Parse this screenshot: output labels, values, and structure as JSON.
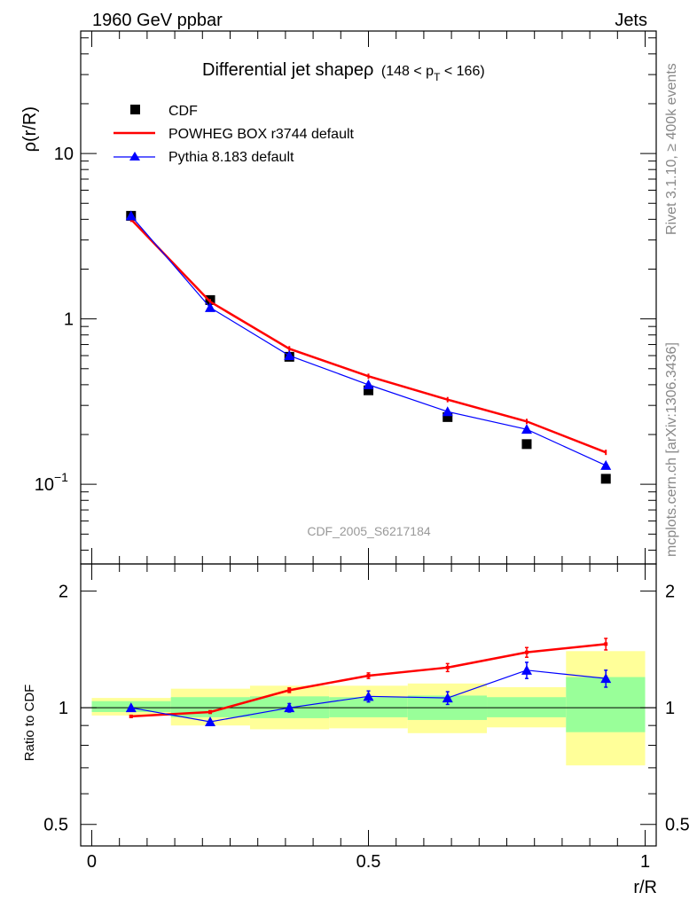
{
  "header": {
    "left": "1960 GeV ppbar",
    "right": "Jets"
  },
  "side_labels": {
    "rivet": "Rivet 3.1.10, ≥ 400k events",
    "mcplots": "mcplots.cern.ch [arXiv:1306.3436]"
  },
  "chart_data": [
    {
      "type": "line",
      "panel": "main",
      "title": "Differential jet shapeρ",
      "title_range_prefix": "(148 < p",
      "title_range_sub": "T",
      "title_range_suffix": " < 166)",
      "ylabel": "ρ(r/R)",
      "yscale": "log",
      "ylim": [
        0.033,
        55
      ],
      "xlim": [
        -0.02,
        1.02
      ],
      "yticks_major": [
        {
          "value": 10,
          "label": "10"
        },
        {
          "value": 1,
          "label": "1"
        },
        {
          "value": 0.1,
          "label_base": "10",
          "label_exp": "−1"
        }
      ],
      "watermark": "CDF_2005_S6217184",
      "legend": [
        "CDF",
        "POWHEG BOX r3744 default",
        "Pythia 8.183 default"
      ],
      "x": [
        0.071,
        0.214,
        0.357,
        0.5,
        0.643,
        0.786,
        0.929
      ],
      "series": [
        {
          "name": "CDF",
          "color": "#000000",
          "marker": "square",
          "values": [
            4.2,
            1.3,
            0.59,
            0.37,
            0.255,
            0.175,
            0.108
          ]
        },
        {
          "name": "POWHEG BOX r3744 default",
          "color": "#ff0000",
          "marker": "none",
          "values": [
            4.0,
            1.27,
            0.66,
            0.45,
            0.325,
            0.24,
            0.156
          ]
        },
        {
          "name": "Pythia 8.183 default",
          "color": "#0000ff",
          "marker": "triangle",
          "values": [
            4.2,
            1.17,
            0.6,
            0.4,
            0.275,
            0.215,
            0.13
          ]
        }
      ]
    },
    {
      "type": "line",
      "panel": "ratio",
      "ylabel": "Ratio to CDF",
      "xlabel": "r/R",
      "yscale": "log",
      "ylim": [
        0.44,
        2.35
      ],
      "xlim": [
        -0.02,
        1.02
      ],
      "yticks_major": [
        {
          "value": 2,
          "label": "2"
        },
        {
          "value": 1,
          "label": "1"
        },
        {
          "value": 0.5,
          "label": "0.5"
        }
      ],
      "xticks_major": [
        {
          "value": 0,
          "label": "0"
        },
        {
          "value": 0.5,
          "label": "0.5"
        },
        {
          "value": 1,
          "label": "1"
        }
      ],
      "bands": [
        {
          "x0": 0.0,
          "x1": 0.143,
          "yellow": [
            0.955,
            1.06
          ],
          "green": [
            0.975,
            1.04
          ]
        },
        {
          "x0": 0.143,
          "x1": 0.286,
          "yellow": [
            0.9,
            1.12
          ],
          "green": [
            0.945,
            1.065
          ]
        },
        {
          "x0": 0.286,
          "x1": 0.429,
          "yellow": [
            0.88,
            1.14
          ],
          "green": [
            0.94,
            1.07
          ]
        },
        {
          "x0": 0.429,
          "x1": 0.571,
          "yellow": [
            0.885,
            1.14
          ],
          "green": [
            0.945,
            1.065
          ]
        },
        {
          "x0": 0.571,
          "x1": 0.714,
          "yellow": [
            0.86,
            1.155
          ],
          "green": [
            0.93,
            1.075
          ]
        },
        {
          "x0": 0.714,
          "x1": 0.857,
          "yellow": [
            0.89,
            1.13
          ],
          "green": [
            0.945,
            1.065
          ]
        },
        {
          "x0": 0.857,
          "x1": 1.0,
          "yellow": [
            0.71,
            1.4
          ],
          "green": [
            0.865,
            1.2
          ]
        }
      ],
      "x": [
        0.071,
        0.214,
        0.357,
        0.5,
        0.643,
        0.786,
        0.929
      ],
      "series": [
        {
          "name": "POWHEG BOX r3744 default",
          "color": "#ff0000",
          "marker": "none",
          "values": [
            0.95,
            0.975,
            1.11,
            1.21,
            1.27,
            1.39,
            1.46
          ],
          "errors": [
            0.005,
            0.008,
            0.015,
            0.02,
            0.03,
            0.04,
            0.05
          ]
        },
        {
          "name": "Pythia 8.183 default",
          "color": "#0000ff",
          "marker": "triangle",
          "values": [
            1.0,
            0.92,
            1.0,
            1.07,
            1.06,
            1.25,
            1.19
          ],
          "errors": [
            0.005,
            0.008,
            0.025,
            0.035,
            0.04,
            0.06,
            0.06
          ]
        }
      ]
    }
  ]
}
